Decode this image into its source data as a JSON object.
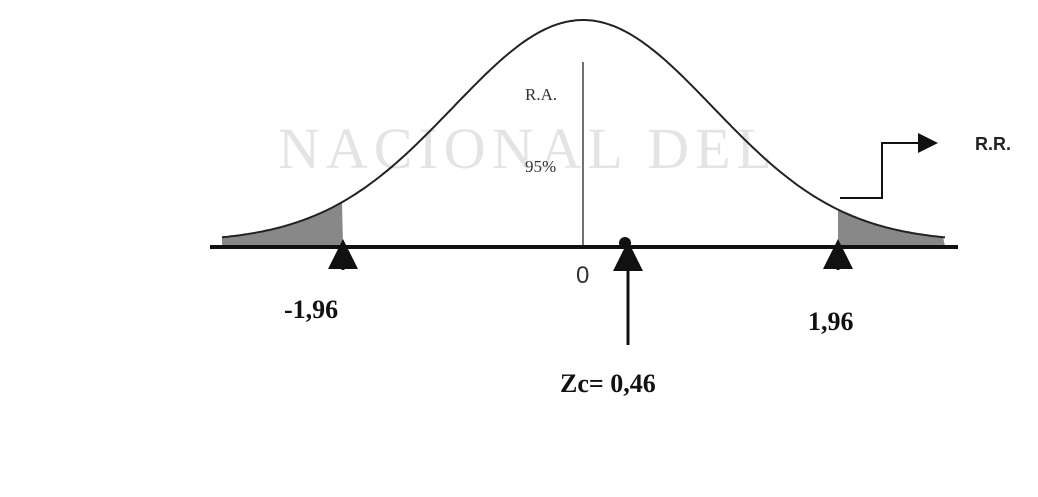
{
  "watermark": "NACIONAL DEL",
  "regions": {
    "acceptance": "R.A.",
    "acceptance_percent": "95%",
    "rejection": "R.R."
  },
  "axis": {
    "center": "0",
    "left_critical": "-1,96",
    "right_critical": "1,96"
  },
  "statistic": "Zc= 0,46"
}
